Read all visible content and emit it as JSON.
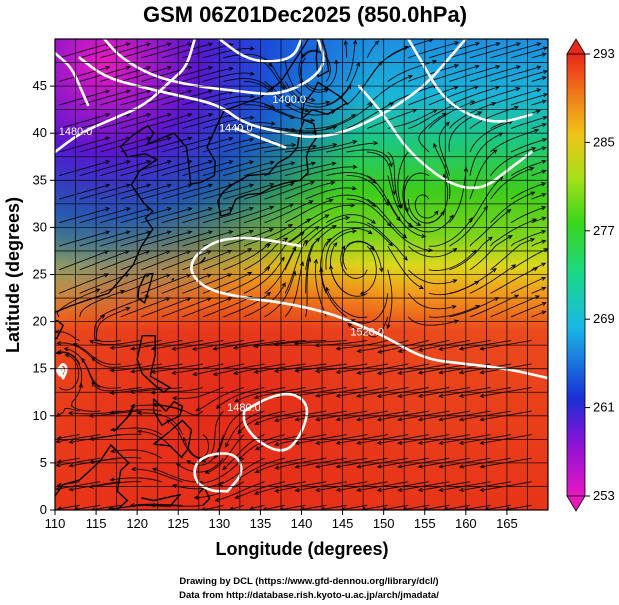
{
  "title": "GSM 06Z01Dec2025 (850.0hPa)",
  "x_axis": {
    "label": "Longitude (degrees)",
    "min": 110,
    "max": 170,
    "ticks": [
      "110",
      "115",
      "120",
      "125",
      "130",
      "135",
      "140",
      "145",
      "150",
      "155",
      "160",
      "165"
    ],
    "tick_values": [
      110,
      115,
      120,
      125,
      130,
      135,
      140,
      145,
      150,
      155,
      160,
      165
    ]
  },
  "y_axis": {
    "label": "Latitude (degrees)",
    "min": 0,
    "max": 50,
    "ticks": [
      "0",
      "5",
      "10",
      "15",
      "20",
      "25",
      "30",
      "35",
      "40",
      "45"
    ],
    "tick_values": [
      0,
      5,
      10,
      15,
      20,
      25,
      30,
      35,
      40,
      45
    ]
  },
  "colorbar": {
    "min": 253,
    "max": 293,
    "ticks": [
      "293",
      "285",
      "277",
      "269",
      "261",
      "253"
    ],
    "tick_values": [
      293,
      285,
      277,
      269,
      261,
      253
    ]
  },
  "contour_labels": [
    {
      "text": "1400.0",
      "lon": 138.5,
      "lat": 43.2
    },
    {
      "text": "1480.0",
      "lon": 112.5,
      "lat": 39.8
    },
    {
      "text": "1440.0",
      "lon": 132.0,
      "lat": 40.2
    },
    {
      "text": "1520.0",
      "lon": 148.0,
      "lat": 18.5
    },
    {
      "text": "1480.0",
      "lon": 133.0,
      "lat": 10.5
    }
  ],
  "credits": {
    "line1": "Drawing by DCL (https://www.gfd-dennou.org/library/dcl/)",
    "line2": "Data from http://database.rish.kyoto-u.ac.jp/arch/jmadata/"
  },
  "colors": {
    "warm": "#e83a1e",
    "cool": "#1e2fd0",
    "mid": "#35d21e",
    "contour": "#ffffff",
    "grid": "#000000"
  }
}
